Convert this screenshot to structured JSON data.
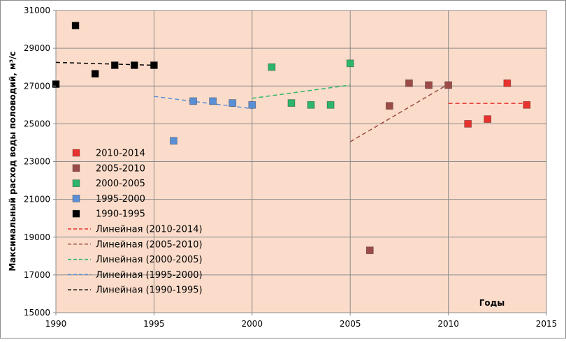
{
  "chart_data": {
    "type": "scatter",
    "title": "",
    "xlabel": "Годы",
    "ylabel": "Максимальный расход воды половодий, м³/с",
    "xlim": [
      1990,
      2015
    ],
    "ylim": [
      15000,
      31000
    ],
    "x_ticks": [
      "1990",
      "1995",
      "2000",
      "2005",
      "2010",
      "2015"
    ],
    "y_ticks": [
      "15000",
      "17000",
      "19000",
      "21000",
      "23000",
      "25000",
      "27000",
      "29000",
      "31000"
    ],
    "grid": "vertical lines at 5-year ticks, horizontal line at every y tick",
    "legend_position": "left-lower, inside plot",
    "colors": {
      "plot_bg": "#fbdcca",
      "grid": "#8c8c8c",
      "2010-2014": "#e8322e",
      "2005-2010": "#9c4c48",
      "2000-2005": "#2db56a",
      "1995-2000": "#5a8fd6",
      "1990-1995": "#000000"
    },
    "series": [
      {
        "name": "2010-2014",
        "x": [
          2011,
          2012,
          2013,
          2014
        ],
        "y": [
          25000,
          25250,
          27150,
          26000
        ]
      },
      {
        "name": "2005-2010",
        "x": [
          2006,
          2007,
          2008,
          2009,
          2010
        ],
        "y": [
          18300,
          25950,
          27150,
          27050,
          27050
        ]
      },
      {
        "name": "2000-2005",
        "x": [
          2001,
          2002,
          2003,
          2004,
          2005
        ],
        "y": [
          28000,
          26100,
          26000,
          26000,
          28200
        ]
      },
      {
        "name": "1995-2000",
        "x": [
          1996,
          1997,
          1998,
          1999,
          2000
        ],
        "y": [
          24100,
          26200,
          26200,
          26100,
          26000
        ]
      },
      {
        "name": "1990-1995",
        "x": [
          1990,
          1991,
          1992,
          1993,
          1994,
          1995
        ],
        "y": [
          27100,
          30200,
          27650,
          28100,
          28100,
          28100
        ]
      }
    ],
    "trendlines": [
      {
        "name": "Линейная (2010-2014)",
        "series": "2010-2014",
        "x": [
          2010,
          2014
        ],
        "y": [
          26080,
          26080
        ],
        "color": "#e8322e"
      },
      {
        "name": "Линейная (2005-2010)",
        "series": "2005-2010",
        "x": [
          2005,
          2010
        ],
        "y": [
          24050,
          27100
        ],
        "color": "#9c4c48"
      },
      {
        "name": "Линейная (2000-2005)",
        "series": "2000-2005",
        "x": [
          2000,
          2005
        ],
        "y": [
          26350,
          27050
        ],
        "color": "#2db56a"
      },
      {
        "name": "Линейная (1995-2000)",
        "series": "1995-2000",
        "x": [
          1995,
          2000
        ],
        "y": [
          26450,
          25800
        ],
        "color": "#5a8fd6"
      },
      {
        "name": "Линейная (1990-1995)",
        "series": "1990-1995",
        "x": [
          1990,
          1995
        ],
        "y": [
          28250,
          28100
        ],
        "color": "#000000"
      }
    ],
    "legend": [
      {
        "label": "2010-2014",
        "kind": "marker",
        "color": "#e8322e"
      },
      {
        "label": "2005-2010",
        "kind": "marker",
        "color": "#9c4c48"
      },
      {
        "label": "2000-2005",
        "kind": "marker",
        "color": "#2db56a"
      },
      {
        "label": "1995-2000",
        "kind": "marker",
        "color": "#5a8fd6"
      },
      {
        "label": "1990-1995",
        "kind": "marker",
        "color": "#000000"
      },
      {
        "label": "Линейная (2010-2014)",
        "kind": "dash",
        "color": "#e8322e"
      },
      {
        "label": "Линейная (2005-2010)",
        "kind": "dash",
        "color": "#9c4c48"
      },
      {
        "label": "Линейная (2000-2005)",
        "kind": "dash",
        "color": "#2db56a"
      },
      {
        "label": "Линейная (1995-2000)",
        "kind": "dash",
        "color": "#5a8fd6"
      },
      {
        "label": "Линейная (1990-1995)",
        "kind": "dash",
        "color": "#000000"
      }
    ]
  }
}
